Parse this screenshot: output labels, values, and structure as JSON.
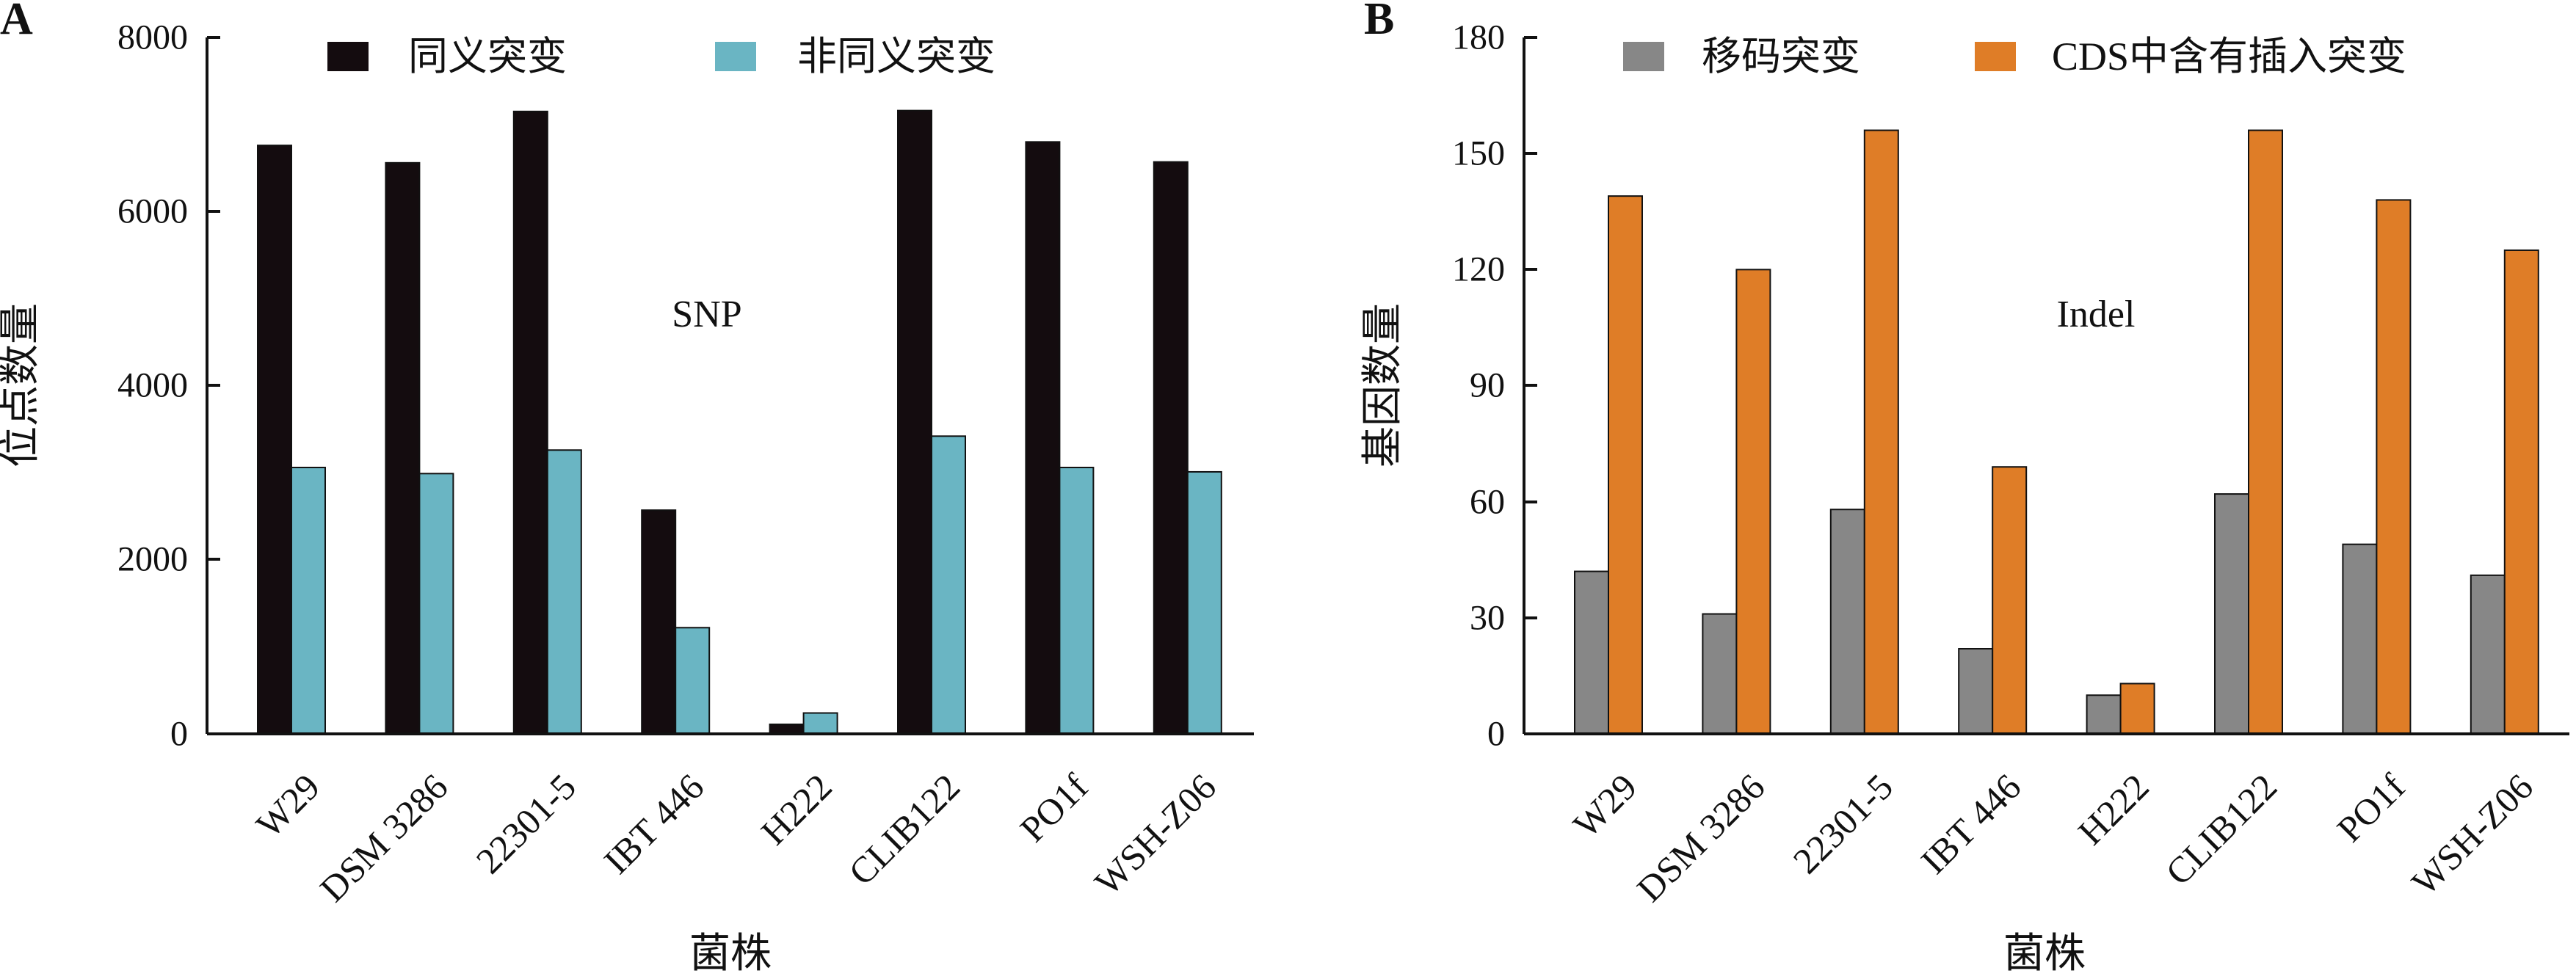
{
  "chart_data": [
    {
      "panel_label": "A",
      "type": "bar",
      "categories": [
        "W29",
        "DSM 3286",
        "22301-5",
        "IBT 446",
        "H222",
        "CLIB122",
        "PO1f",
        "WSH-Z06"
      ],
      "series": [
        {
          "name": "同义突变",
          "color": "#140c0f",
          "values": [
            6760,
            6560,
            7150,
            2570,
            110,
            7160,
            6800,
            6570
          ]
        },
        {
          "name": "非同义突变",
          "color": "#6ab5c3",
          "values": [
            3060,
            2990,
            3260,
            1220,
            240,
            3420,
            3060,
            3010
          ]
        }
      ],
      "xlabel": "菌株",
      "ylabel": "位点数量",
      "ylim": [
        0,
        8000
      ],
      "yticks": [
        "0",
        "2000",
        "4000",
        "6000",
        "8000"
      ],
      "annotation": "SNP",
      "legend_position": "top",
      "grid": false
    },
    {
      "panel_label": "B",
      "type": "bar",
      "categories": [
        "W29",
        "DSM 3286",
        "22301-5",
        "IBT 446",
        "H222",
        "CLIB122",
        "PO1f",
        "WSH-Z06"
      ],
      "series": [
        {
          "name": "移码突变",
          "color": "#878787",
          "values": [
            42,
            31,
            58,
            22,
            10,
            62,
            49,
            41
          ]
        },
        {
          "name": "CDS中含有插入突变",
          "color": "#df7d27",
          "values": [
            139,
            120,
            156,
            69,
            13,
            156,
            138,
            125
          ]
        }
      ],
      "xlabel": "菌株",
      "ylabel": "基因数量",
      "ylim": [
        0,
        180
      ],
      "yticks": [
        "0",
        "30",
        "60",
        "90",
        "120",
        "150",
        "180"
      ],
      "annotation": "Indel",
      "legend_position": "top",
      "grid": false
    }
  ]
}
